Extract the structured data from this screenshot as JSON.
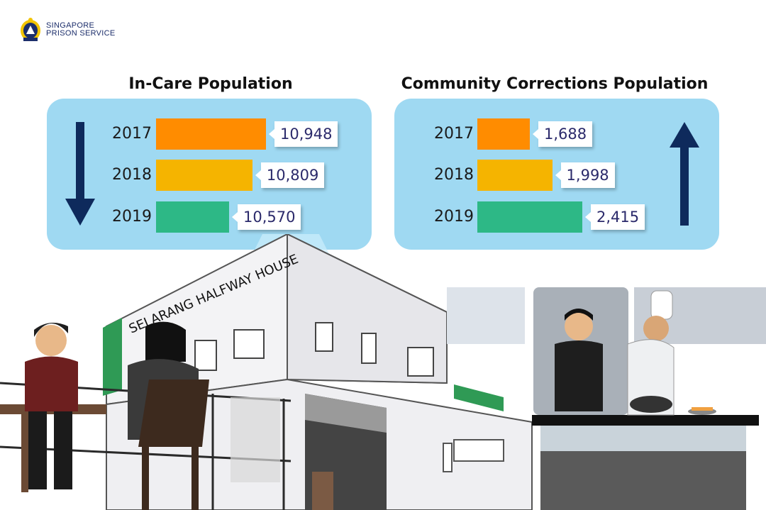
{
  "brand": {
    "line1": "SINGAPORE",
    "line2": "PRISON SERVICE"
  },
  "colors": {
    "2017": "#ff8c00",
    "2018": "#f5b400",
    "2019": "#2db886",
    "panel": "#9fd9f2",
    "arrow": "#0e2a5c"
  },
  "scene": {
    "building_sign": "SELARANG HALFWAY HOUSE"
  },
  "chart_data": [
    {
      "type": "bar",
      "orientation": "horizontal",
      "title": "In-Care Population",
      "categories": [
        "2017",
        "2018",
        "2019"
      ],
      "values": [
        10948,
        10809,
        10570
      ],
      "labels": [
        "10,948",
        "10,809",
        "10,570"
      ],
      "trend": "down"
    },
    {
      "type": "bar",
      "orientation": "horizontal",
      "title": "Community Corrections Population",
      "categories": [
        "2017",
        "2018",
        "2019"
      ],
      "values": [
        1688,
        1998,
        2415
      ],
      "labels": [
        "1,688",
        "1,998",
        "2,415"
      ],
      "trend": "up"
    }
  ]
}
